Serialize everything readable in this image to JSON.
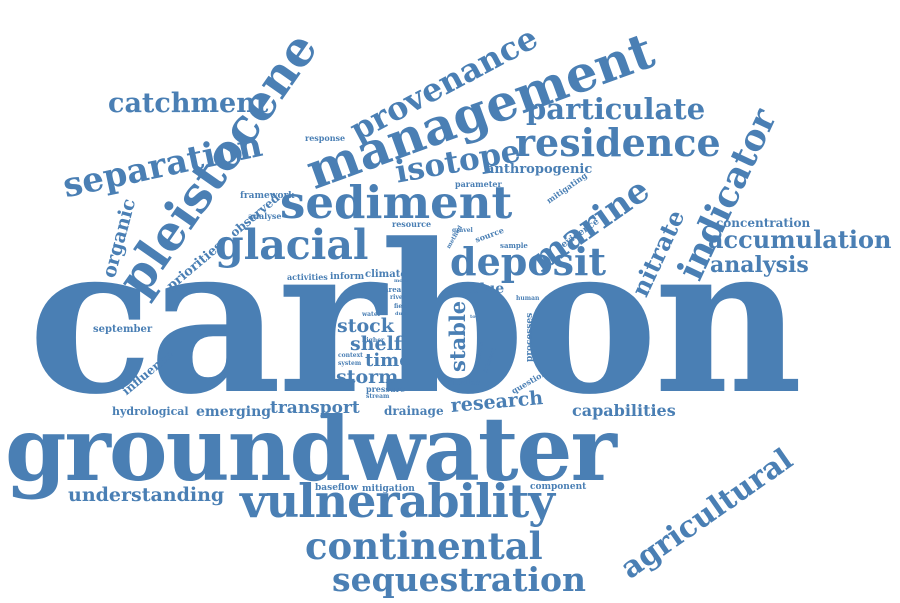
{
  "style": {
    "word_color": "#4a7fb4",
    "background": "#ffffff"
  },
  "words": {
    "carbon": "carbon",
    "groundwater": "groundwater",
    "vulnerability": "vulnerability",
    "continental": "continental",
    "sequestration": "sequestration",
    "management": "management",
    "sediment": "sediment",
    "pleistocene": "pleistocene",
    "glacial": "glacial",
    "deposit": "deposit",
    "residence": "residence",
    "particulate": "particulate",
    "provenance": "provenance",
    "catchment": "catchment",
    "separation": "separation",
    "isotope": "isotope",
    "marine": "marine",
    "indicator": "indicator",
    "accumulation": "accumulation",
    "analysis": "analysis",
    "concentration": "concentration",
    "nitrate": "nitrate",
    "agricultural": "agricultural",
    "research": "research",
    "transport": "transport",
    "capabilities": "capabilities",
    "understanding": "understanding",
    "stock": "stock",
    "shelf": "shelf",
    "time": "time",
    "storm": "storm",
    "stable": "stable",
    "blue": "blue",
    "organic": "organic",
    "anthropogenic": "anthropogenic",
    "priorities": "priorities",
    "observed": "observed",
    "emerging": "emerging",
    "hydrological": "hydrological",
    "drainage": "drainage",
    "influence": "influence",
    "september": "september",
    "baseflow": "baseflow",
    "mitigation": "mitigation",
    "component": "component",
    "framework": "framework",
    "analyse": "analyse",
    "response": "response",
    "parameter": "parameter",
    "mitigating": "mitigating",
    "evidence": "evidence",
    "processes": "processes",
    "question": "question",
    "studies": "studies",
    "inform": "inform",
    "climate": "climate",
    "activities": "activities",
    "resource": "resource",
    "source": "source",
    "sample": "sample",
    "area": "area",
    "river": "river",
    "field": "field",
    "human": "human",
    "water": "water",
    "higher": "higher",
    "context": "context",
    "system": "system",
    "pressure": "pressure",
    "stream": "stream",
    "method": "method",
    "gravel": "gravel",
    "interest": "interest",
    "toolbox": "toolbox",
    "dual": "dual",
    "day": "day",
    "more": "more",
    "tool": "tool"
  }
}
